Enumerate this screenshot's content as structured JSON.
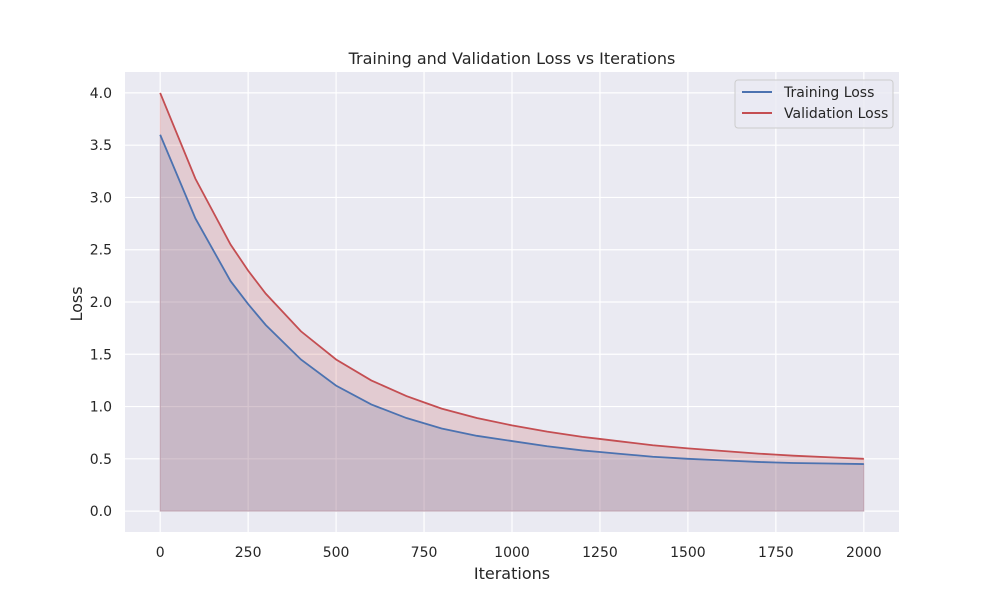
{
  "chart_data": {
    "type": "line",
    "title": "Training and Validation Loss vs Iterations",
    "xlabel": "Iterations",
    "ylabel": "Loss",
    "xlim": [
      -100,
      2100
    ],
    "ylim": [
      -0.2,
      4.2
    ],
    "x_ticks": [
      0,
      250,
      500,
      750,
      1000,
      1250,
      1500,
      1750,
      2000
    ],
    "y_ticks": [
      0.0,
      0.5,
      1.0,
      1.5,
      2.0,
      2.5,
      3.0,
      3.5,
      4.0
    ],
    "x_tick_labels": [
      "0",
      "250",
      "500",
      "750",
      "1000",
      "1250",
      "1500",
      "1750",
      "2000"
    ],
    "y_tick_labels": [
      "0.0",
      "0.5",
      "1.0",
      "1.5",
      "2.0",
      "2.5",
      "3.0",
      "3.5",
      "4.0"
    ],
    "grid": true,
    "legend_position": "top-right",
    "x": [
      0,
      100,
      200,
      250,
      300,
      400,
      500,
      600,
      700,
      750,
      800,
      900,
      1000,
      1100,
      1200,
      1250,
      1300,
      1400,
      1500,
      1600,
      1700,
      1750,
      1800,
      1900,
      2000
    ],
    "series": [
      {
        "name": "Training Loss",
        "color": "#4c72b0",
        "values": [
          3.6,
          2.8,
          2.2,
          1.98,
          1.78,
          1.45,
          1.2,
          1.02,
          0.89,
          0.84,
          0.79,
          0.72,
          0.67,
          0.62,
          0.58,
          0.565,
          0.55,
          0.52,
          0.5,
          0.485,
          0.47,
          0.465,
          0.46,
          0.455,
          0.45
        ]
      },
      {
        "name": "Validation Loss",
        "color": "#c44e52",
        "values": [
          4.0,
          3.18,
          2.55,
          2.3,
          2.08,
          1.72,
          1.45,
          1.25,
          1.1,
          1.04,
          0.98,
          0.89,
          0.82,
          0.76,
          0.71,
          0.69,
          0.67,
          0.63,
          0.6,
          0.575,
          0.55,
          0.54,
          0.53,
          0.515,
          0.5
        ]
      }
    ]
  }
}
